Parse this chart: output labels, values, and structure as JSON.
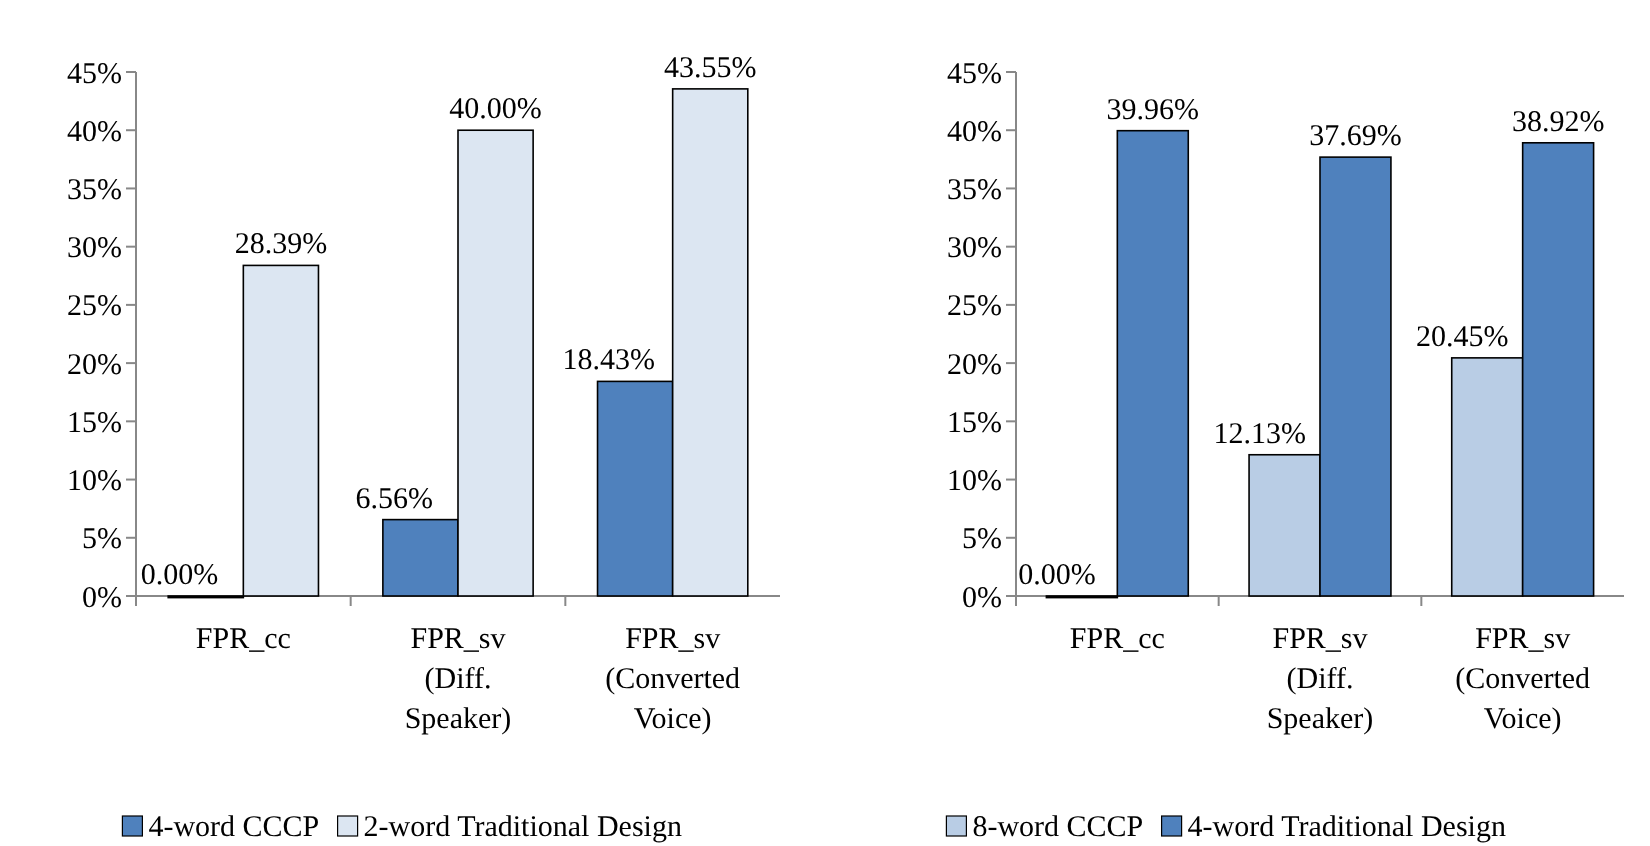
{
  "chart_data": [
    {
      "type": "bar",
      "categories": [
        "FPR_cc",
        "FPR_sv\n(Diff.\nSpeaker)",
        "FPR_sv\n(Converted\nVoice)"
      ],
      "series": [
        {
          "name": "4-word CCCP",
          "color": "#4f81bd",
          "values": [
            0,
            6.56,
            18.43
          ],
          "value_labels": [
            "0.00%",
            "6.56%",
            "18.43%"
          ]
        },
        {
          "name": "2-word Traditional Design",
          "color": "#dce6f2",
          "values": [
            28.39,
            40,
            43.55
          ],
          "value_labels": [
            "28.39%",
            "40.00%",
            "43.55%"
          ]
        }
      ],
      "ylim": [
        0,
        45
      ],
      "yticks": [
        {
          "value": 0,
          "label": "0%"
        },
        {
          "value": 5,
          "label": "5%"
        },
        {
          "value": 10,
          "label": "10%"
        },
        {
          "value": 15,
          "label": "15%"
        },
        {
          "value": 20,
          "label": "20%"
        },
        {
          "value": 25,
          "label": "25%"
        },
        {
          "value": 30,
          "label": "30%"
        },
        {
          "value": 35,
          "label": "35%"
        },
        {
          "value": 40,
          "label": "40%"
        },
        {
          "value": 45,
          "label": "45%"
        }
      ],
      "legend": "bottom",
      "grid": false
    },
    {
      "type": "bar",
      "categories": [
        "FPR_cc",
        "FPR_sv\n(Diff.\nSpeaker)",
        "FPR_sv\n(Converted\nVoice)"
      ],
      "series": [
        {
          "name": "8-word CCCP",
          "color": "#b9cde5",
          "values": [
            0,
            12.13,
            20.45
          ],
          "value_labels": [
            "0.00%",
            "12.13%",
            "20.45%"
          ]
        },
        {
          "name": "4-word Traditional Design",
          "color": "#4f81bd",
          "values": [
            39.96,
            37.69,
            38.92
          ],
          "value_labels": [
            "39.96%",
            "37.69%",
            "38.92%"
          ]
        }
      ],
      "ylim": [
        0,
        45
      ],
      "yticks": [
        {
          "value": 0,
          "label": "0%"
        },
        {
          "value": 5,
          "label": "5%"
        },
        {
          "value": 10,
          "label": "10%"
        },
        {
          "value": 15,
          "label": "15%"
        },
        {
          "value": 20,
          "label": "20%"
        },
        {
          "value": 25,
          "label": "25%"
        },
        {
          "value": 30,
          "label": "30%"
        },
        {
          "value": 35,
          "label": "35%"
        },
        {
          "value": 40,
          "label": "40%"
        },
        {
          "value": 45,
          "label": "45%"
        }
      ],
      "legend": "bottom",
      "grid": false
    }
  ]
}
